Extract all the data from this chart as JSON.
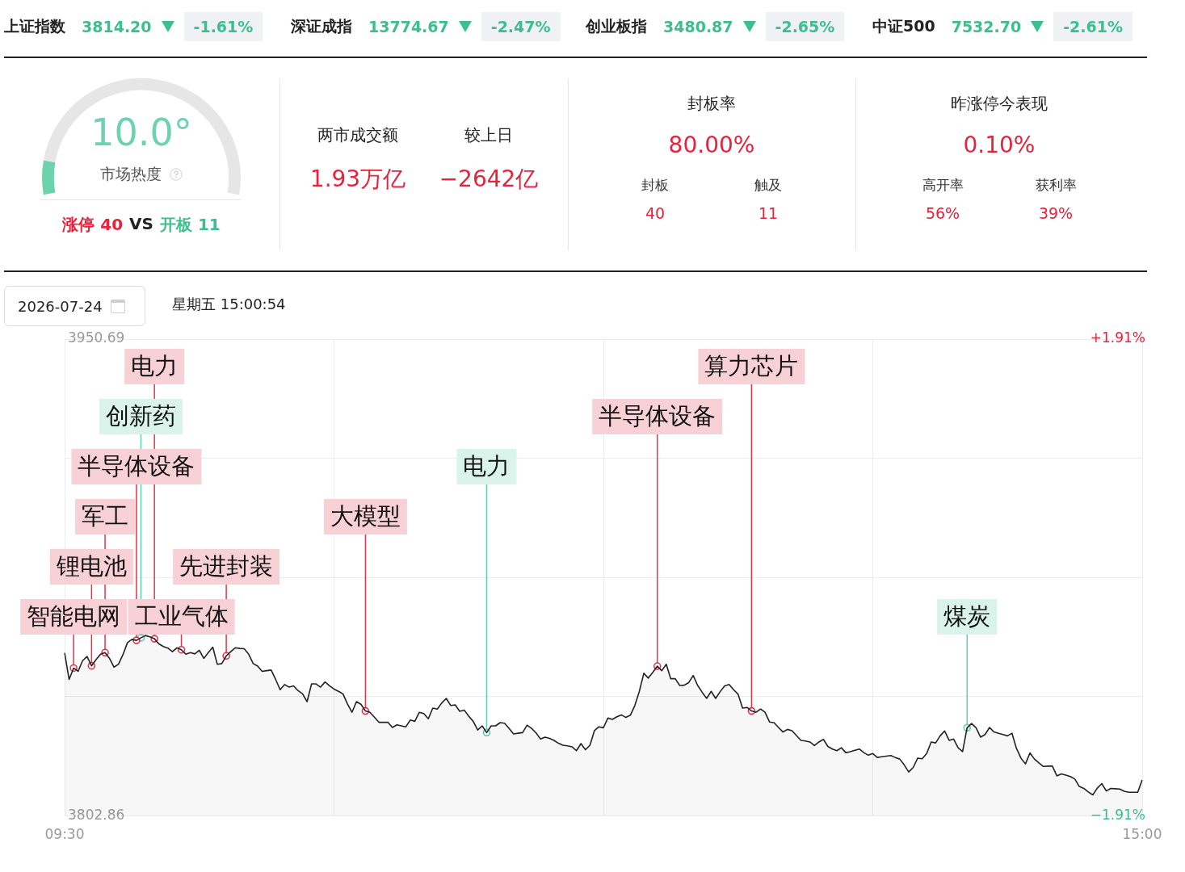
{
  "chart_data": [
    {
      "type": "other",
      "annotations": [
        "上证指数",
        "3814.20",
        "-1.61%",
        "深证成指",
        "13774.67",
        "-2.47%",
        "创业板指",
        "3480.87",
        "-2.65%",
        "中证500",
        "7532.70",
        "-2.61%"
      ]
    },
    {
      "type": "donut",
      "title": "10.0°",
      "categories": [
        null,
        null
      ],
      "values": [
        10,
        90
      ],
      "colors": [
        "#6dd3ae",
        "#e6e6e6"
      ],
      "annotations": [
        "市场热度",
        "涨停 40",
        "VS",
        "开板 11"
      ]
    },
    {
      "type": "other",
      "annotations": [
        "两市成交额",
        "较上日",
        "1.93万亿",
        "−2642亿"
      ]
    },
    {
      "type": "other",
      "title": "封板率",
      "annotations": [
        "80.00%",
        "封板",
        "触及",
        "40",
        "11"
      ]
    },
    {
      "type": "other",
      "title": "昨涨停今表现",
      "annotations": [
        "0.10%",
        "高开率",
        "获利率",
        "56%",
        "39%"
      ]
    },
    {
      "type": "area",
      "categories": [
        "09:30",
        null,
        null,
        null,
        null,
        null,
        null,
        null,
        null,
        null,
        null,
        null,
        null,
        null,
        null,
        null,
        null,
        null,
        null,
        null,
        null,
        null,
        null,
        null,
        null,
        null,
        null,
        null,
        null,
        null,
        null,
        null,
        null,
        null,
        null,
        null,
        null,
        null,
        null,
        null,
        null,
        null,
        null,
        null,
        null,
        null,
        null,
        null,
        null,
        null,
        null,
        null,
        null,
        null,
        null,
        null,
        null,
        null,
        null,
        null,
        null,
        null,
        null,
        null,
        null,
        null,
        null,
        null,
        null,
        null,
        null,
        null,
        null,
        null,
        null,
        null,
        null,
        null,
        null,
        null,
        null,
        null,
        null,
        null,
        null,
        null,
        null,
        null,
        null,
        null,
        null,
        null,
        null,
        null,
        null,
        null,
        null,
        null,
        null,
        null,
        null,
        null,
        null,
        null,
        null,
        null,
        null,
        null,
        null,
        null,
        null,
        null,
        null,
        null,
        null,
        null,
        null,
        null,
        null,
        null,
        null,
        null,
        null,
        null,
        null,
        null,
        null,
        null,
        null,
        null,
        null,
        null,
        null,
        null,
        null,
        null,
        null,
        null,
        null,
        null,
        null,
        null,
        null,
        null,
        null,
        null,
        null,
        null,
        null,
        null,
        null,
        null,
        null,
        null,
        null,
        null,
        null,
        null,
        null,
        null,
        null,
        null,
        null,
        null,
        null,
        null,
        null,
        null,
        null,
        null,
        null,
        null,
        null,
        null,
        null,
        null,
        null,
        null,
        null,
        null,
        null,
        null,
        null,
        null,
        null,
        null,
        null,
        null,
        null,
        null,
        null,
        null,
        null,
        null,
        null,
        null,
        null,
        null,
        null,
        null,
        null,
        null,
        null,
        null,
        null,
        null,
        null,
        null,
        null,
        null,
        null,
        null,
        null,
        null,
        null,
        null,
        null,
        null,
        null,
        null,
        null,
        null,
        null,
        null,
        null,
        null,
        null,
        null,
        null,
        null,
        null,
        null,
        null,
        null,
        null,
        null,
        null,
        null,
        null,
        null,
        "15:00"
      ],
      "series": [
        {
          "color": "#222222",
          "values": [
            3853.4,
            3845.2,
            3848.7,
            3847.7,
            3851.0,
            3852.3,
            3849.4,
            3851.3,
            3853.0,
            3853.5,
            3851.7,
            3849.0,
            3849.9,
            3852.9,
            3856.6,
            3857.6,
            3857.3,
            3858.1,
            3858.8,
            3858.4,
            3857.8,
            3856.2,
            3855.4,
            3854.9,
            3853.8,
            3855.0,
            3854.4,
            3853.0,
            3853.5,
            3853.1,
            3854.2,
            3851.7,
            3853.5,
            3855.2,
            3849.9,
            3850.1,
            3852.5,
            3853.8,
            3855.0,
            3854.8,
            3854.7,
            3853.0,
            3850.1,
            3849.3,
            3847.7,
            3847.9,
            3848.1,
            3845.2,
            3842.0,
            3843.6,
            3842.8,
            3843.2,
            3841.7,
            3840.7,
            3838.3,
            3843.8,
            3843.8,
            3842.8,
            3844.4,
            3843.2,
            3842.2,
            3841.5,
            3840.7,
            3837.6,
            3835.0,
            3838.3,
            3837.5,
            3835.4,
            3835.0,
            3833.5,
            3831.9,
            3831.9,
            3831.9,
            3830.3,
            3831.1,
            3830.8,
            3830.5,
            3832.6,
            3832.2,
            3835.0,
            3834.6,
            3833.0,
            3836.3,
            3836.0,
            3837.9,
            3839.3,
            3837.1,
            3837.3,
            3835.3,
            3835.7,
            3833.8,
            3832.2,
            3829.5,
            3830.8,
            3828.7,
            3830.8,
            3830.8,
            3831.8,
            3831.6,
            3830.0,
            3828.3,
            3828.5,
            3828.7,
            3831.0,
            3830.0,
            3828.6,
            3826.7,
            3827.3,
            3826.9,
            3826.3,
            3825.4,
            3824.8,
            3824.6,
            3824.3,
            3823.1,
            3825.3,
            3823.4,
            3824.8,
            3829.3,
            3830.5,
            3830.2,
            3833.2,
            3832.8,
            3833.6,
            3834.2,
            3833.4,
            3834.1,
            3837.1,
            3841.5,
            3847.1,
            3845.6,
            3847.4,
            3849.3,
            3847.9,
            3849.9,
            3845.4,
            3845.4,
            3843.3,
            3843.4,
            3844.2,
            3846.4,
            3843.3,
            3841.2,
            3839.3,
            3841.5,
            3839.3,
            3841.4,
            3843.2,
            3843.6,
            3842.0,
            3840.6,
            3836.3,
            3836.5,
            3835.4,
            3835.0,
            3836.0,
            3835.0,
            3832.0,
            3831.8,
            3830.3,
            3828.9,
            3829.7,
            3829.3,
            3827.8,
            3826.3,
            3826.1,
            3825.8,
            3824.7,
            3825.8,
            3826.6,
            3824.4,
            3823.6,
            3823.1,
            3824.0,
            3822.5,
            3822.8,
            3823.2,
            3823.6,
            3822.5,
            3821.7,
            3822.2,
            3821.0,
            3821.2,
            3821.4,
            3821.6,
            3821.0,
            3820.5,
            3818.7,
            3816.5,
            3817.9,
            3820.8,
            3820.6,
            3822.2,
            3825.8,
            3825.5,
            3827.7,
            3829.2,
            3826.3,
            3826.7,
            3824.0,
            3822.8,
            3830.2,
            3831.5,
            3830.2,
            3827.3,
            3828.1,
            3830.3,
            3828.9,
            3828.5,
            3828.1,
            3827.7,
            3828.5,
            3823.8,
            3820.8,
            3819.0,
            3822.4,
            3820.5,
            3819.3,
            3818.2,
            3818.3,
            3818.3,
            3815.3,
            3815.9,
            3815.5,
            3815.1,
            3814.3,
            3812.0,
            3811.4,
            3810.3,
            3809.4,
            3811.5,
            3812.9,
            3810.6,
            3811.4,
            3811.3,
            3811.2,
            3810.5,
            3810.2,
            3810.2,
            3810.2,
            3814.0
          ]
        },
        {
          "type": "scatter",
          "color": "#e0364c",
          "marker": "circle",
          "values": [
            null,
            null,
            3848.7,
            null,
            null,
            null,
            3849.4,
            null,
            null,
            3853.5,
            null,
            null,
            null,
            null,
            null,
            null,
            3857.3,
            null,
            null,
            null,
            3857.8,
            null,
            null,
            null,
            null,
            null,
            3854.4,
            null,
            null,
            null,
            null,
            null,
            null,
            null,
            null,
            null,
            3852.5,
            null,
            null,
            null,
            null,
            null,
            null,
            null,
            null,
            null,
            null,
            null,
            null,
            null,
            null,
            null,
            null,
            null,
            null,
            null,
            null,
            null,
            null,
            null,
            null,
            null,
            null,
            null,
            null,
            null,
            null,
            3835.4,
            null,
            null,
            null,
            null,
            null,
            null,
            null,
            null,
            null,
            null,
            null,
            null,
            null,
            null,
            null,
            null,
            null,
            null,
            null,
            null,
            null,
            null,
            null,
            null,
            null,
            null,
            null,
            null,
            null,
            null,
            null,
            null,
            null,
            null,
            null,
            null,
            null,
            null,
            null,
            null,
            null,
            null,
            null,
            null,
            null,
            null,
            null,
            null,
            null,
            null,
            null,
            null,
            null,
            null,
            null,
            null,
            null,
            null,
            null,
            null,
            null,
            null,
            null,
            null,
            3849.3,
            null,
            null,
            null,
            null,
            null,
            null,
            null,
            null,
            null,
            null,
            null,
            null,
            null,
            null,
            null,
            null,
            null,
            null,
            null,
            null,
            3835.4,
            null,
            null,
            null,
            null,
            null,
            null,
            null,
            null,
            null,
            null,
            null,
            null,
            null,
            null,
            null,
            null,
            null,
            null,
            null,
            null,
            null,
            null,
            null,
            null,
            null,
            null,
            null,
            null,
            null,
            null,
            null,
            null,
            null,
            null,
            null,
            null,
            null,
            null,
            null,
            null,
            null,
            null,
            null,
            null,
            null,
            null,
            null,
            null,
            null,
            null,
            null,
            null,
            null,
            null,
            null,
            null,
            null,
            null,
            null,
            null,
            null,
            null,
            null,
            null,
            null,
            null,
            null,
            null,
            null,
            null,
            null,
            null,
            null,
            null,
            null,
            null,
            null,
            null,
            null,
            null,
            null,
            null,
            null,
            null,
            null,
            null,
            null
          ]
        },
        {
          "type": "scatter",
          "color": "#5fcfae",
          "marker": "circle",
          "values": [
            null,
            null,
            null,
            null,
            null,
            null,
            null,
            null,
            null,
            null,
            null,
            null,
            null,
            null,
            null,
            null,
            null,
            3858.1,
            null,
            null,
            null,
            null,
            null,
            null,
            null,
            null,
            null,
            null,
            null,
            null,
            null,
            null,
            null,
            null,
            null,
            null,
            null,
            null,
            null,
            null,
            null,
            null,
            null,
            null,
            null,
            null,
            null,
            null,
            null,
            null,
            null,
            null,
            null,
            null,
            null,
            null,
            null,
            null,
            null,
            null,
            null,
            null,
            null,
            null,
            null,
            null,
            null,
            null,
            null,
            null,
            null,
            null,
            null,
            null,
            null,
            null,
            null,
            null,
            null,
            null,
            null,
            null,
            null,
            null,
            null,
            null,
            null,
            null,
            null,
            null,
            null,
            null,
            null,
            null,
            3828.7,
            null,
            null,
            null,
            null,
            null,
            null,
            null,
            null,
            null,
            null,
            null,
            null,
            null,
            null,
            null,
            null,
            null,
            null,
            null,
            null,
            null,
            null,
            null,
            null,
            null,
            null,
            null,
            null,
            null,
            null,
            null,
            null,
            null,
            null,
            null,
            null,
            null,
            null,
            null,
            null,
            null,
            null,
            null,
            null,
            null,
            null,
            null,
            null,
            null,
            null,
            null,
            null,
            null,
            null,
            null,
            null,
            null,
            null,
            null,
            null,
            null,
            null,
            null,
            null,
            null,
            null,
            null,
            null,
            null,
            null,
            null,
            null,
            null,
            null,
            null,
            null,
            null,
            null,
            null,
            null,
            null,
            null,
            null,
            null,
            null,
            null,
            null,
            null,
            null,
            null,
            null,
            null,
            null,
            null,
            null,
            null,
            null,
            null,
            null,
            null,
            null,
            null,
            null,
            null,
            null,
            null,
            3830.2,
            null,
            null,
            null,
            null,
            null,
            null,
            null,
            null,
            null,
            null,
            null,
            null,
            null,
            null,
            null,
            null,
            null,
            null,
            null,
            null,
            null,
            null,
            null,
            null,
            null,
            null,
            null,
            null,
            null,
            null,
            null,
            null,
            null,
            null,
            null,
            null,
            null,
            null,
            null
          ]
        }
      ],
      "ylim": [
        3802.86,
        3950.69
      ],
      "yticks": [
        3950.69,
        {
          "value": 3913.73,
          "label": null
        },
        {
          "value": 3876.78,
          "label": null
        },
        {
          "value": 3839.82,
          "label": null
        },
        3802.86
      ],
      "y2lim": [
        -1.91,
        1.91
      ],
      "y2ticks": [
        {
          "value": 1.91,
          "label": "+1.91%"
        },
        {
          "value": -1.91,
          "label": "−1.91%"
        }
      ],
      "grid": true,
      "annotations": [
        "2026-07-24",
        "星期五 15:00:54",
        {
          "text": "智能电网",
          "y": 3848.7
        },
        {
          "text": "锂电池",
          "y": 3849.4
        },
        {
          "text": "军工",
          "y": 3853.5
        },
        {
          "text": "半导体设备",
          "y": 3857.3
        },
        {
          "text": "创新药",
          "y": 3858.1
        },
        {
          "text": "电力",
          "y": 3857.8
        },
        {
          "text": "工业气体",
          "y": 3854.4
        },
        {
          "text": "先进封装",
          "y": 3852.5
        },
        {
          "text": "大模型",
          "y": 3835.4
        },
        {
          "text": "电力",
          "y": 3828.7
        },
        {
          "text": "半导体设备",
          "y": 3849.3
        },
        {
          "text": "算力芯片",
          "y": 3835.4
        },
        {
          "text": "煤炭",
          "y": 3830.2
        }
      ]
    }
  ]
}
